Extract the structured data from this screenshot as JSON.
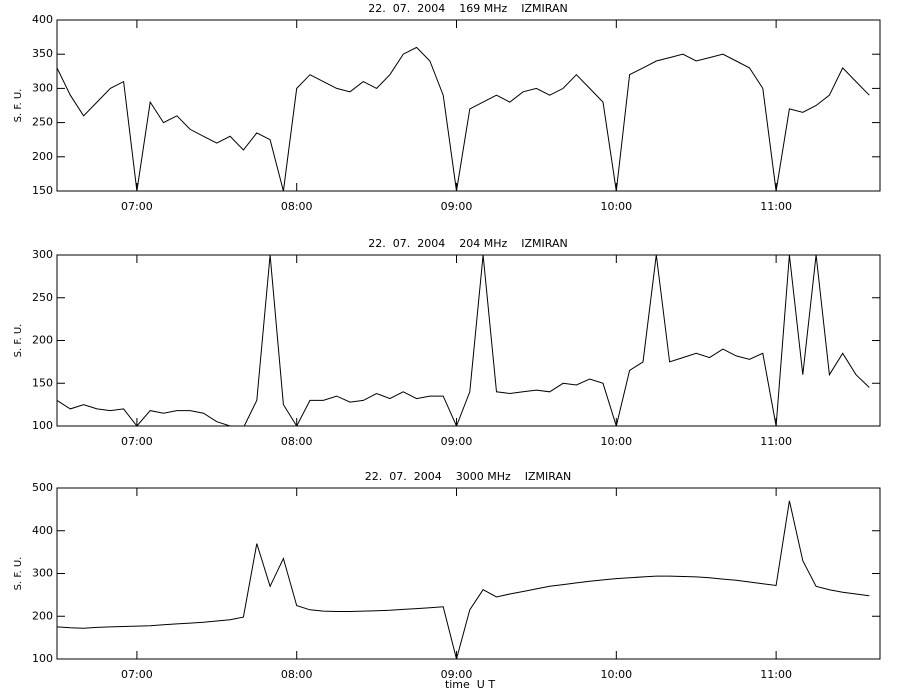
{
  "chart_data": [
    {
      "type": "line",
      "title": "22.  07.  2004    169 MHz    IZMIRAN",
      "y_label": "S. F. U.",
      "color": "#000000",
      "x": [
        "06:30",
        "06:35",
        "06:40",
        "06:45",
        "06:50",
        "06:55",
        "07:00",
        "07:05",
        "07:10",
        "07:15",
        "07:20",
        "07:25",
        "07:30",
        "07:35",
        "07:40",
        "07:45",
        "07:50",
        "07:55",
        "08:00",
        "08:05",
        "08:10",
        "08:15",
        "08:20",
        "08:25",
        "08:30",
        "08:35",
        "08:40",
        "08:45",
        "08:50",
        "08:55",
        "09:00",
        "09:05",
        "09:10",
        "09:15",
        "09:20",
        "09:25",
        "09:30",
        "09:35",
        "09:40",
        "09:45",
        "09:50",
        "09:55",
        "10:00",
        "10:05",
        "10:10",
        "10:15",
        "10:20",
        "10:25",
        "10:30",
        "10:35",
        "10:40",
        "10:45",
        "10:50",
        "10:55",
        "11:00",
        "11:05",
        "11:10",
        "11:15",
        "11:20",
        "11:25",
        "11:30",
        "11:35"
      ],
      "values": [
        330,
        290,
        260,
        280,
        300,
        310,
        150,
        280,
        250,
        260,
        240,
        230,
        220,
        230,
        210,
        235,
        225,
        150,
        300,
        320,
        310,
        300,
        295,
        310,
        300,
        320,
        350,
        360,
        340,
        290,
        150,
        270,
        280,
        290,
        280,
        295,
        300,
        290,
        300,
        320,
        300,
        280,
        150,
        320,
        330,
        340,
        345,
        350,
        340,
        345,
        350,
        340,
        330,
        300,
        150,
        270,
        265,
        275,
        290,
        330,
        310,
        290
      ],
      "xlim": [
        "06:30",
        "11:39"
      ],
      "xticks": [
        "07:00",
        "08:00",
        "09:00",
        "10:00",
        "11:00"
      ],
      "ylim": [
        150,
        400
      ],
      "yticks": [
        150,
        200,
        250,
        300,
        350,
        400
      ]
    },
    {
      "type": "line",
      "title": "22.  07.  2004    204 MHz    IZMIRAN",
      "y_label": "S. F. U.",
      "color": "#000000",
      "x": [
        "06:30",
        "06:35",
        "06:40",
        "06:45",
        "06:50",
        "06:55",
        "07:00",
        "07:05",
        "07:10",
        "07:15",
        "07:20",
        "07:25",
        "07:30",
        "07:35",
        "07:40",
        "07:45",
        "07:50",
        "07:55",
        "08:00",
        "08:05",
        "08:10",
        "08:15",
        "08:20",
        "08:25",
        "08:30",
        "08:35",
        "08:40",
        "08:45",
        "08:50",
        "08:55",
        "09:00",
        "09:05",
        "09:10",
        "09:15",
        "09:20",
        "09:25",
        "09:30",
        "09:35",
        "09:40",
        "09:45",
        "09:50",
        "09:55",
        "10:00",
        "10:05",
        "10:10",
        "10:15",
        "10:20",
        "10:25",
        "10:30",
        "10:35",
        "10:40",
        "10:45",
        "10:50",
        "10:55",
        "11:00",
        "11:05",
        "11:10",
        "11:15",
        "11:20",
        "11:25",
        "11:30",
        "11:35"
      ],
      "values": [
        130,
        120,
        125,
        120,
        118,
        120,
        100,
        118,
        115,
        118,
        118,
        115,
        105,
        100,
        98,
        130,
        300,
        125,
        100,
        130,
        130,
        135,
        128,
        130,
        138,
        132,
        140,
        132,
        135,
        135,
        100,
        140,
        300,
        140,
        138,
        140,
        142,
        140,
        150,
        148,
        155,
        150,
        100,
        165,
        175,
        300,
        175,
        180,
        185,
        180,
        190,
        182,
        178,
        185,
        100,
        300,
        160,
        300,
        160,
        185,
        160,
        145
      ],
      "xlim": [
        "06:30",
        "11:39"
      ],
      "xticks": [
        "07:00",
        "08:00",
        "09:00",
        "10:00",
        "11:00"
      ],
      "ylim": [
        100,
        300
      ],
      "yticks": [
        100,
        150,
        200,
        250,
        300
      ]
    },
    {
      "type": "line",
      "title": "22.  07.  2004    3000 MHz    IZMIRAN",
      "y_label": "S. F. U.",
      "x_label": "time  U T",
      "color": "#000000",
      "x": [
        "06:30",
        "06:35",
        "06:40",
        "06:45",
        "06:50",
        "06:55",
        "07:00",
        "07:05",
        "07:10",
        "07:15",
        "07:20",
        "07:25",
        "07:30",
        "07:35",
        "07:40",
        "07:45",
        "07:50",
        "07:55",
        "08:00",
        "08:05",
        "08:10",
        "08:15",
        "08:20",
        "08:25",
        "08:30",
        "08:35",
        "08:40",
        "08:45",
        "08:50",
        "08:55",
        "09:00",
        "09:05",
        "09:10",
        "09:15",
        "09:20",
        "09:25",
        "09:30",
        "09:35",
        "09:40",
        "09:45",
        "09:50",
        "09:55",
        "10:00",
        "10:05",
        "10:10",
        "10:15",
        "10:20",
        "10:25",
        "10:30",
        "10:35",
        "10:40",
        "10:45",
        "10:50",
        "10:55",
        "11:00",
        "11:05",
        "11:10",
        "11:15",
        "11:20",
        "11:25",
        "11:30",
        "11:35"
      ],
      "values": [
        175,
        173,
        172,
        174,
        175,
        176,
        177,
        178,
        180,
        182,
        184,
        186,
        189,
        192,
        198,
        370,
        270,
        335,
        225,
        215,
        212,
        211,
        211,
        212,
        213,
        214,
        216,
        218,
        220,
        222,
        100,
        215,
        262,
        245,
        252,
        258,
        264,
        270,
        274,
        278,
        282,
        285,
        288,
        290,
        292,
        294,
        294,
        293,
        292,
        290,
        287,
        284,
        280,
        276,
        272,
        470,
        330,
        270,
        262,
        256,
        252,
        248
      ],
      "xlim": [
        "06:30",
        "11:39"
      ],
      "xticks": [
        "07:00",
        "08:00",
        "09:00",
        "10:00",
        "11:00"
      ],
      "ylim": [
        100,
        500
      ],
      "yticks": [
        100,
        200,
        300,
        400,
        500
      ]
    }
  ]
}
